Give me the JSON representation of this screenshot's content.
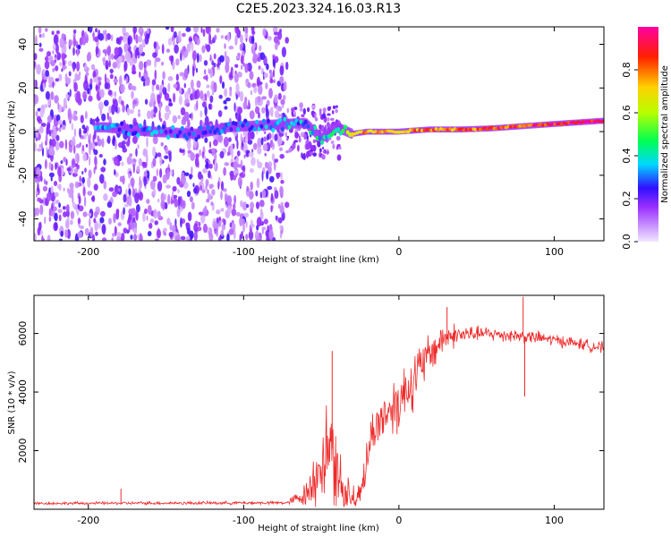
{
  "figure_title": "C2E5.2023.324.16.03.R13",
  "chart_data": [
    {
      "type": "heatmap",
      "name": "spectrogram",
      "xlabel": "Height of straight line (km)",
      "ylabel": "Frequency (Hz)",
      "xlim": [
        -235,
        132
      ],
      "ylim": [
        -50,
        48
      ],
      "xticks": [
        -200,
        -100,
        0,
        100
      ],
      "yticks": [
        -40,
        -20,
        0,
        20,
        40
      ],
      "colorbar": {
        "label": "Normalized spectral amplitude",
        "range": [
          0,
          1
        ],
        "ticks": [
          0.0,
          0.2,
          0.4,
          0.6,
          0.8
        ],
        "colors": [
          "#f2e6ff",
          "#9b30ff",
          "#3010ff",
          "#00d8ff",
          "#00ff50",
          "#b8ff00",
          "#ffd000",
          "#ff2000",
          "#ff00a0"
        ]
      },
      "noise_region_x": [
        -235,
        -72
      ],
      "signal_track": [
        {
          "x": -190,
          "freq": 2,
          "amp": 0.35
        },
        {
          "x": -160,
          "freq": 0,
          "amp": 0.35
        },
        {
          "x": -130,
          "freq": -1,
          "amp": 0.3
        },
        {
          "x": -110,
          "freq": 2,
          "amp": 0.3
        },
        {
          "x": -60,
          "freq": 4,
          "amp": 0.4
        },
        {
          "x": -50,
          "freq": -3,
          "amp": 0.45
        },
        {
          "x": -40,
          "freq": 2,
          "amp": 0.5
        },
        {
          "x": -30,
          "freq": -1,
          "amp": 0.7
        },
        {
          "x": -20,
          "freq": 0,
          "amp": 0.8
        },
        {
          "x": 0,
          "freq": 0,
          "amp": 0.75
        },
        {
          "x": 20,
          "freq": 1,
          "amp": 0.85
        },
        {
          "x": 40,
          "freq": 1,
          "amp": 0.85
        },
        {
          "x": 60,
          "freq": 1.5,
          "amp": 0.9
        },
        {
          "x": 80,
          "freq": 2.5,
          "amp": 0.9
        },
        {
          "x": 100,
          "freq": 3.5,
          "amp": 0.95
        },
        {
          "x": 132,
          "freq": 5,
          "amp": 0.95
        }
      ]
    },
    {
      "type": "line",
      "name": "snr",
      "xlabel": "Height of straight line (km)",
      "ylabel": "SNR (10 * v/v)",
      "xlim": [
        -235,
        132
      ],
      "ylim": [
        0,
        7300
      ],
      "xticks": [
        -200,
        -100,
        0,
        100
      ],
      "yticks": [
        2000,
        4000,
        6000
      ],
      "color": "#ee2a2a",
      "envelope": [
        {
          "x": -235,
          "mean": 200,
          "noise": 60
        },
        {
          "x": -72,
          "mean": 220,
          "noise": 70
        },
        {
          "x": -60,
          "mean": 500,
          "noise": 500
        },
        {
          "x": -50,
          "mean": 1500,
          "noise": 1800
        },
        {
          "x": -44,
          "mean": 2300,
          "noise": 2600
        },
        {
          "x": -38,
          "mean": 900,
          "noise": 1300
        },
        {
          "x": -28,
          "mean": 300,
          "noise": 400
        },
        {
          "x": -22,
          "mean": 1200,
          "noise": 800
        },
        {
          "x": -18,
          "mean": 2500,
          "noise": 900
        },
        {
          "x": -10,
          "mean": 3200,
          "noise": 1000
        },
        {
          "x": 0,
          "mean": 3700,
          "noise": 1400
        },
        {
          "x": 10,
          "mean": 4500,
          "noise": 1200
        },
        {
          "x": 20,
          "mean": 5300,
          "noise": 900
        },
        {
          "x": 30,
          "mean": 5900,
          "noise": 600
        },
        {
          "x": 50,
          "mean": 6000,
          "noise": 300
        },
        {
          "x": 70,
          "mean": 5950,
          "noise": 300
        },
        {
          "x": 90,
          "mean": 5850,
          "noise": 280
        },
        {
          "x": 110,
          "mean": 5700,
          "noise": 250
        },
        {
          "x": 132,
          "mean": 5500,
          "noise": 250
        }
      ],
      "spikes": [
        {
          "x": 80,
          "value": 7250
        },
        {
          "x": 81,
          "value": 3850
        },
        {
          "x": 31,
          "value": 6900
        },
        {
          "x": -43,
          "value": 5400
        },
        {
          "x": -179,
          "value": 700
        }
      ]
    }
  ]
}
